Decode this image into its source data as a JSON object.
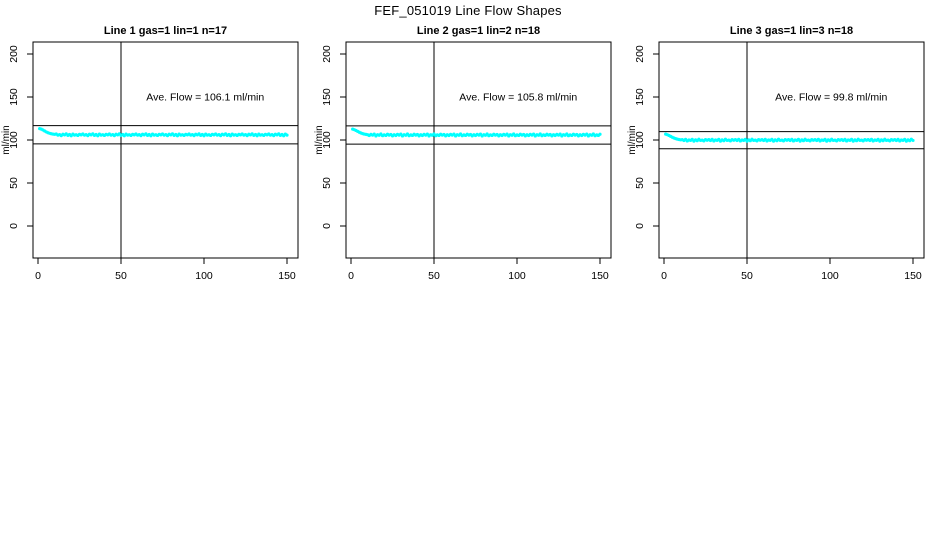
{
  "figure": {
    "title": "FEF_051019  Line Flow Shapes"
  },
  "colors": {
    "marker": "#00ffff",
    "axis": "#000000",
    "background": "#ffffff"
  },
  "chart_data": [
    {
      "type": "scatter",
      "title": "Line 1 gas=1 lin=1 n=17",
      "annotation": "Ave. Flow =  106.1  ml/min",
      "ave_flow_ml_min": 106.1,
      "ylabel": "ml/min",
      "xticks": [
        0,
        50,
        100,
        150
      ],
      "yticks": [
        0,
        50,
        100,
        150,
        200
      ],
      "xlim": [
        0,
        150
      ],
      "ylim": [
        0,
        200
      ],
      "grid": false,
      "vline_x": 50,
      "ref_lines_y": [
        116.7,
        95.5
      ],
      "series": {
        "name": "line-1-flow",
        "x_start": 1,
        "x_end": 150,
        "head_y": [
          113.2,
          112.6,
          111.7,
          110.5,
          109.4,
          108.5,
          107.8,
          107.3,
          106.9,
          106.6
        ],
        "settle_y": 106.1,
        "noise_pattern": [
          0.9,
          -0.5,
          0.2,
          -1.0,
          0.6,
          -0.2,
          1.1,
          -0.7,
          0.3,
          -1.2,
          0.8,
          -0.4,
          0.1,
          -0.8,
          0.5,
          -0.1
        ]
      }
    },
    {
      "type": "scatter",
      "title": "Line 2 gas=1 lin=2 n=18",
      "annotation": "Ave. Flow =  105.8  ml/min",
      "ave_flow_ml_min": 105.8,
      "ylabel": "ml/min",
      "xticks": [
        0,
        50,
        100,
        150
      ],
      "yticks": [
        0,
        50,
        100,
        150,
        200
      ],
      "xlim": [
        0,
        150
      ],
      "ylim": [
        0,
        200
      ],
      "grid": false,
      "vline_x": 50,
      "ref_lines_y": [
        116.4,
        95.2
      ],
      "series": {
        "name": "line-2-flow",
        "x_start": 1,
        "x_end": 150,
        "head_y": [
          112.6,
          112.0,
          111.1,
          110.0,
          109.0,
          108.1,
          107.4,
          106.9,
          106.5,
          106.1
        ],
        "settle_y": 105.8,
        "noise_pattern": [
          -0.6,
          0.8,
          -0.2,
          1.0,
          -1.1,
          0.4,
          -0.3,
          1.2,
          -0.8,
          0.2,
          -0.5,
          0.9,
          -0.1,
          0.6,
          -1.0,
          0.3
        ]
      }
    },
    {
      "type": "scatter",
      "title": "Line 3 gas=1 lin=3 n=18",
      "annotation": "Ave. Flow =  99.8  ml/min",
      "ave_flow_ml_min": 99.8,
      "ylabel": "ml/min",
      "xticks": [
        0,
        50,
        100,
        150
      ],
      "yticks": [
        0,
        50,
        100,
        150,
        200
      ],
      "xlim": [
        0,
        150
      ],
      "ylim": [
        0,
        200
      ],
      "grid": false,
      "vline_x": 50,
      "ref_lines_y": [
        109.8,
        89.8
      ],
      "series": {
        "name": "line-3-flow",
        "x_start": 1,
        "x_end": 150,
        "head_y": [
          106.8,
          106.2,
          105.3,
          104.2,
          103.2,
          102.3,
          101.6,
          101.0,
          100.6,
          100.2
        ],
        "settle_y": 99.8,
        "noise_pattern": [
          0.7,
          -0.4,
          1.0,
          -0.9,
          0.2,
          -0.2,
          0.9,
          -1.1,
          0.4,
          -0.6,
          1.1,
          -0.3,
          0.1,
          -0.8,
          0.6,
          -0.1
        ]
      }
    }
  ]
}
